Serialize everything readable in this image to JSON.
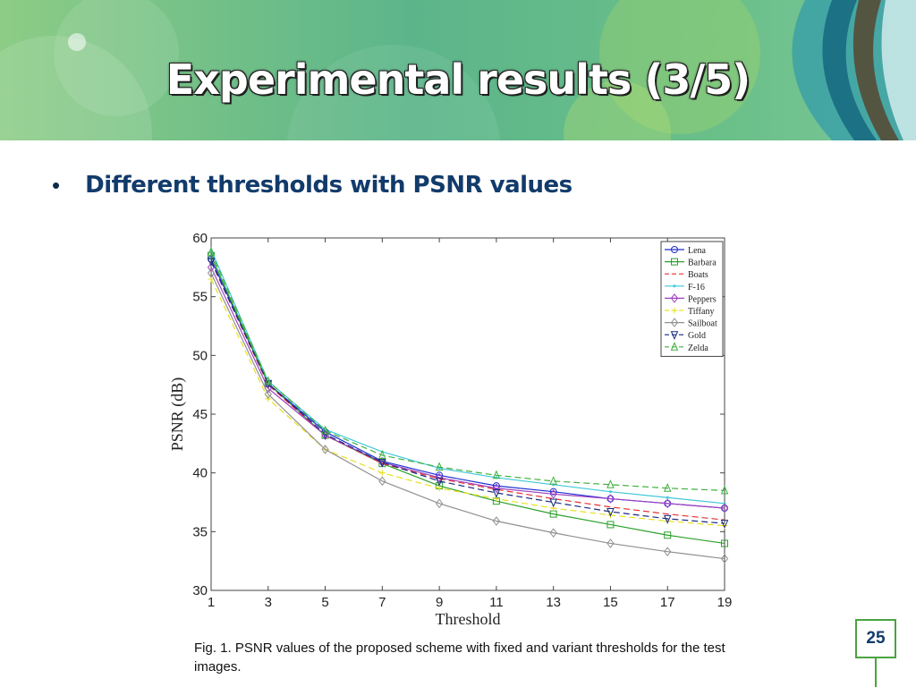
{
  "slide": {
    "title": "Experimental results (3/5)",
    "bullet": "Different thresholds with PSNR values",
    "caption": "Fig. 1. PSNR values of the proposed scheme with fixed and variant thresholds for the test images.",
    "page_number": "25"
  },
  "colors": {
    "banner_green": "#6cbf8a",
    "accent_green": "#4aa33f",
    "bullet_blue": "#123b6b"
  },
  "chart_data": {
    "type": "line",
    "xlabel": "Threshold",
    "ylabel": "PSNR (dB)",
    "xlim": [
      1,
      19
    ],
    "ylim": [
      30,
      60
    ],
    "xticks": [
      1,
      3,
      5,
      7,
      9,
      11,
      13,
      15,
      17,
      19
    ],
    "yticks": [
      30,
      35,
      40,
      45,
      50,
      55,
      60
    ],
    "grid": false,
    "legend_position": "top-right",
    "x": [
      1,
      3,
      5,
      7,
      9,
      11,
      13,
      15,
      17,
      19
    ],
    "series": [
      {
        "name": "Lena",
        "color": "#1f2fd0",
        "marker": "circle",
        "dash": "solid",
        "values": [
          58.2,
          47.6,
          43.5,
          41.0,
          39.8,
          38.9,
          38.4,
          37.8,
          37.4,
          37.0
        ]
      },
      {
        "name": "Barbara",
        "color": "#2ca02c",
        "marker": "square",
        "dash": "solid",
        "values": [
          58.5,
          47.6,
          43.2,
          40.8,
          38.9,
          37.6,
          36.5,
          35.6,
          34.7,
          34.0
        ]
      },
      {
        "name": "Boats",
        "color": "#e83030",
        "marker": "none",
        "dash": "dashed",
        "values": [
          58.0,
          47.5,
          43.2,
          40.8,
          39.5,
          38.6,
          37.8,
          37.1,
          36.5,
          36.0
        ]
      },
      {
        "name": "F-16",
        "color": "#3fc8d8",
        "marker": "dot",
        "dash": "solid",
        "values": [
          59.0,
          47.8,
          43.7,
          41.8,
          40.4,
          39.6,
          39.0,
          38.4,
          37.9,
          37.4
        ]
      },
      {
        "name": "Peppers",
        "color": "#a040c0",
        "marker": "diamond",
        "dash": "solid",
        "values": [
          57.5,
          47.2,
          43.2,
          40.9,
          39.6,
          38.7,
          38.2,
          37.8,
          37.4,
          37.0
        ]
      },
      {
        "name": "Tiffany",
        "color": "#e8e020",
        "marker": "plus",
        "dash": "dashed",
        "values": [
          56.5,
          46.3,
          42.0,
          40.0,
          38.7,
          37.8,
          37.0,
          36.4,
          35.9,
          35.5
        ]
      },
      {
        "name": "Sailboat",
        "color": "#909090",
        "marker": "diamond",
        "dash": "solid",
        "values": [
          57.0,
          46.7,
          42.0,
          39.3,
          37.4,
          35.9,
          34.9,
          34.0,
          33.3,
          32.7
        ]
      },
      {
        "name": "Gold",
        "color": "#1a2a80",
        "marker": "triangle-down",
        "dash": "dashed",
        "values": [
          58.0,
          47.6,
          43.3,
          40.9,
          39.3,
          38.3,
          37.5,
          36.7,
          36.1,
          35.7
        ]
      },
      {
        "name": "Zelda",
        "color": "#40b040",
        "marker": "triangle-up",
        "dash": "dashed",
        "values": [
          58.8,
          47.8,
          43.6,
          41.5,
          40.5,
          39.8,
          39.3,
          39.0,
          38.7,
          38.5
        ]
      }
    ]
  }
}
